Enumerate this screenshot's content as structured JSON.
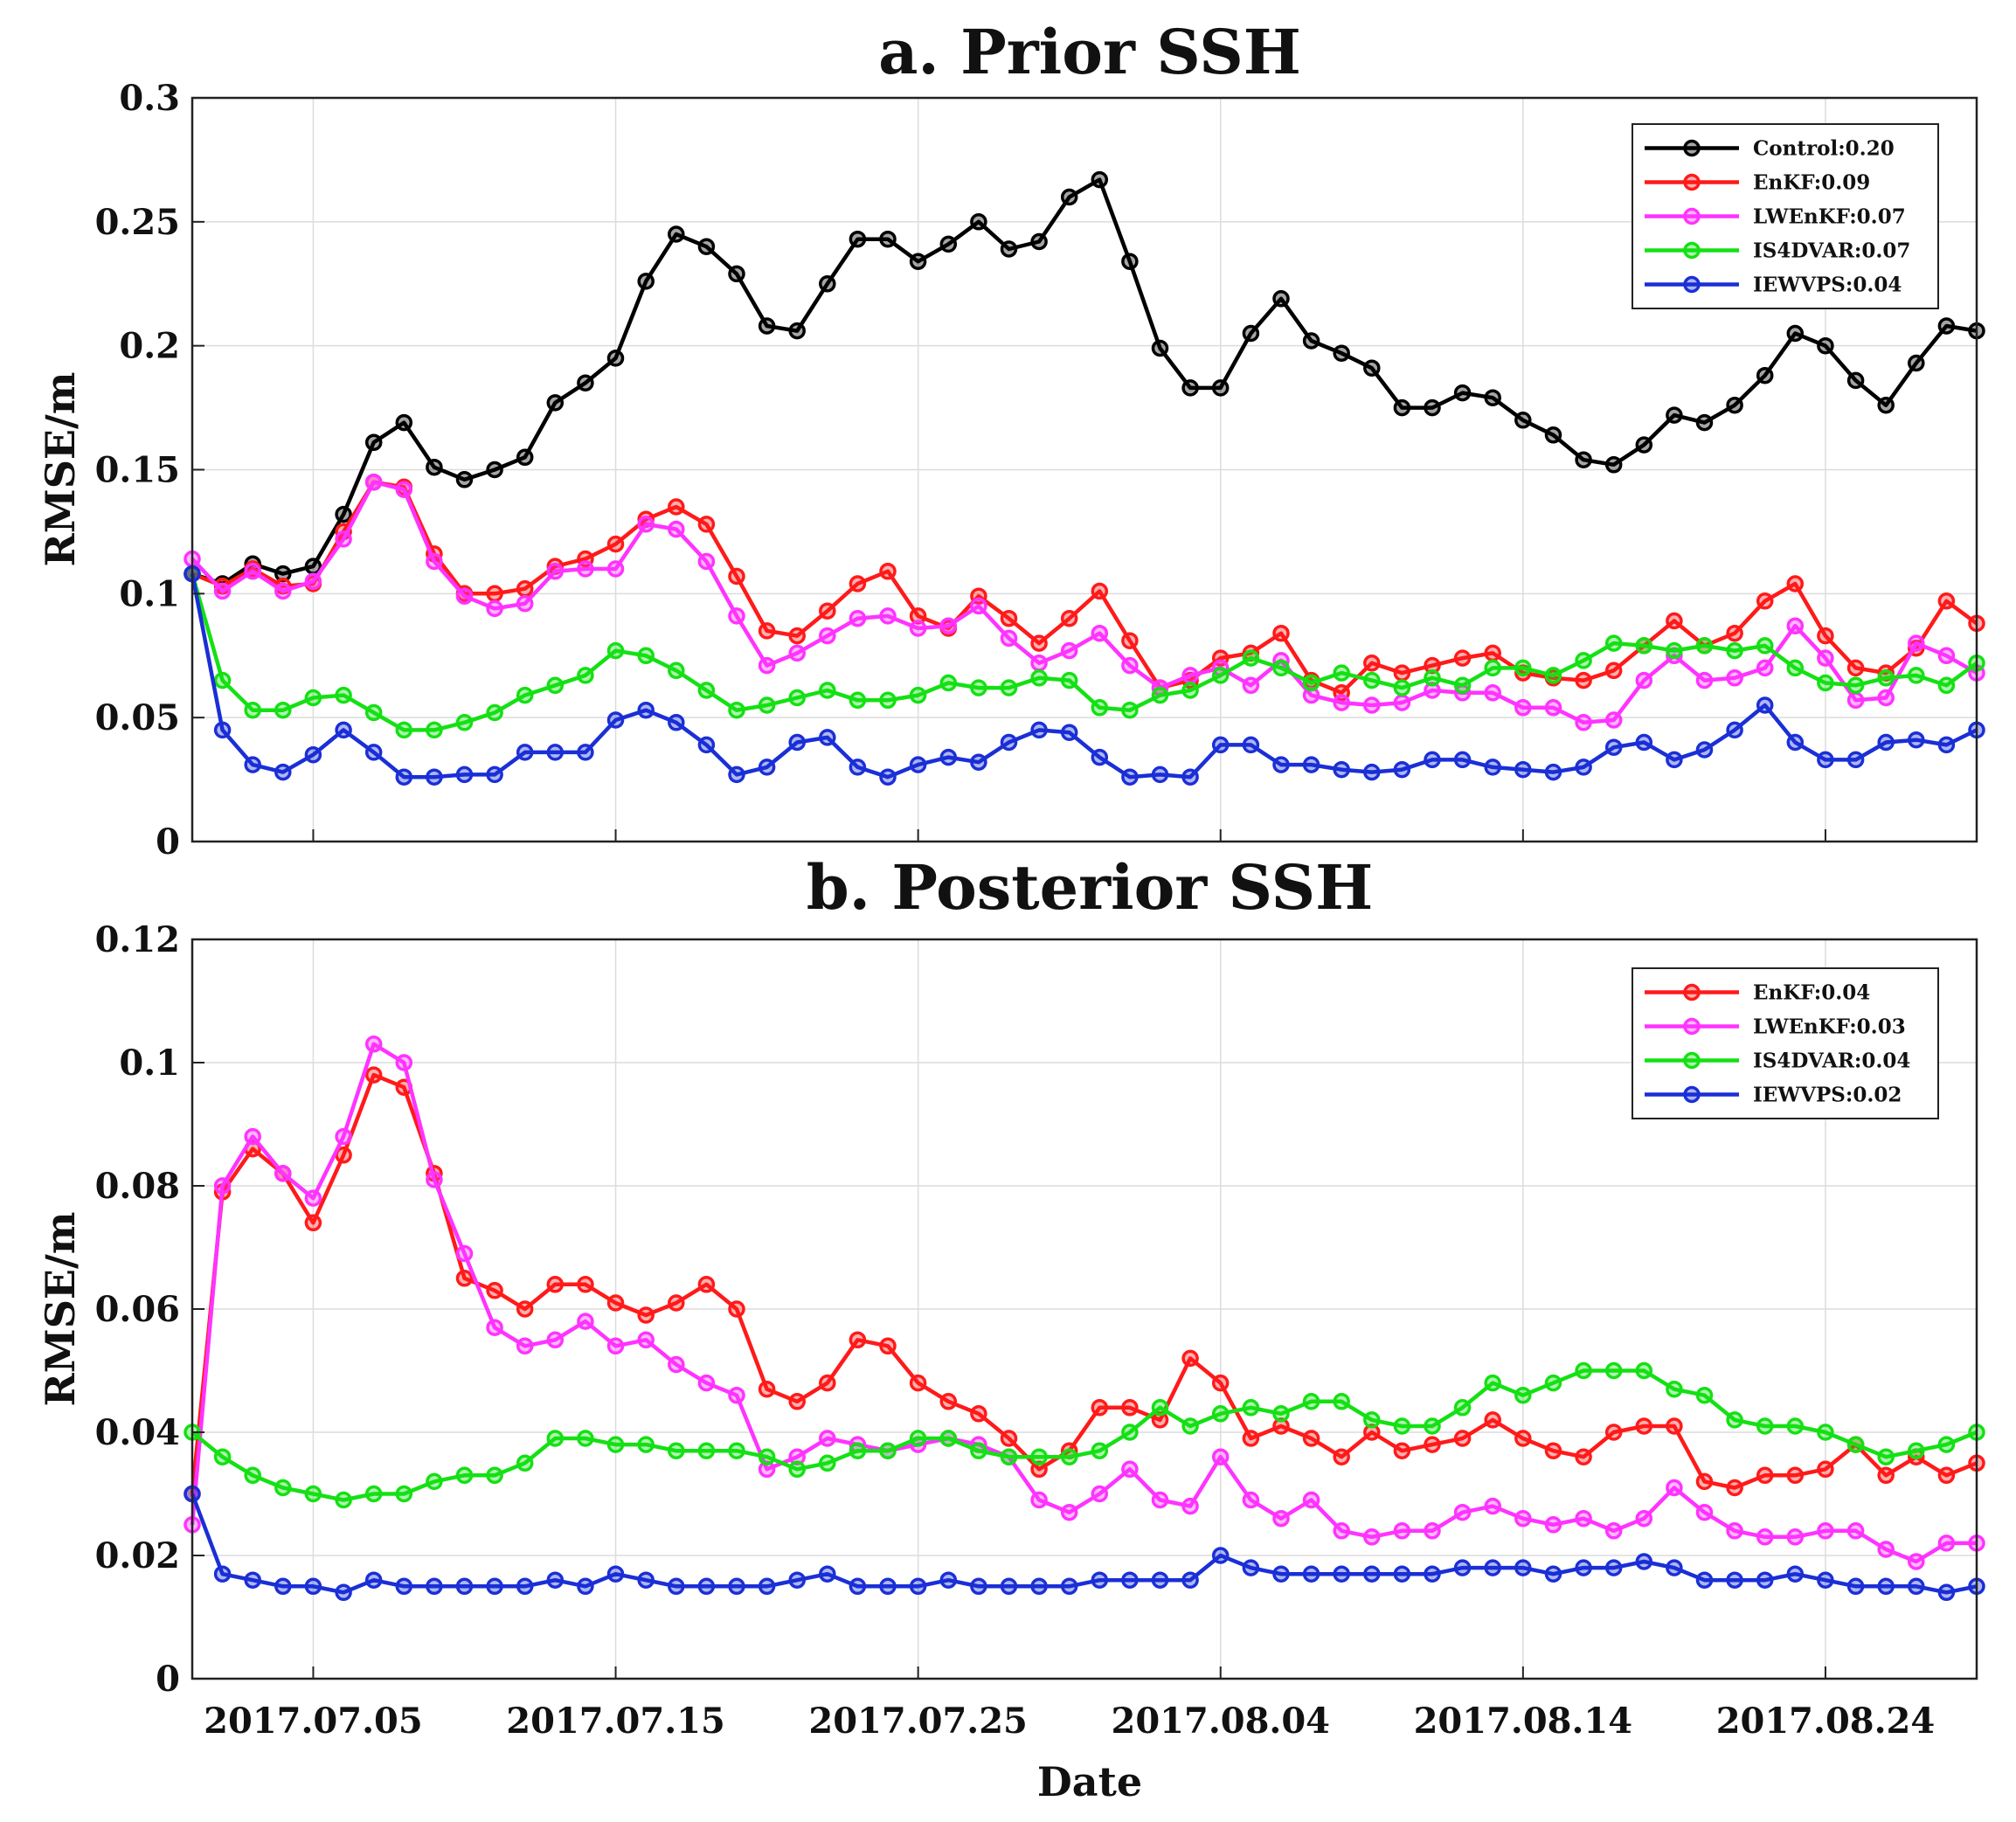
{
  "chart_data": [
    {
      "type": "line",
      "title": "a. Prior SSH",
      "xlabel": "",
      "ylabel": "RMSE/m",
      "ylim": [
        0,
        0.3
      ],
      "yticks": [
        "0",
        "0.05",
        "0.1",
        "0.15",
        "0.2",
        "0.25",
        "0.3"
      ],
      "xticks": [
        "2017.07.05",
        "2017.07.15",
        "2017.07.25",
        "2017.08.04",
        "2017.08.14",
        "2017.08.24"
      ],
      "x_start": "2017.07.01",
      "x_end": "2017.08.29",
      "grid": true,
      "legend_position": "top-right",
      "series": [
        {
          "name": "Control:0.20",
          "color": "#000000",
          "values": [
            0.108,
            0.104,
            0.112,
            0.108,
            0.111,
            0.132,
            0.161,
            0.169,
            0.151,
            0.146,
            0.15,
            0.155,
            0.177,
            0.185,
            0.195,
            0.226,
            0.245,
            0.24,
            0.229,
            0.208,
            0.206,
            0.225,
            0.243,
            0.243,
            0.234,
            0.241,
            0.25,
            0.239,
            0.242,
            0.26,
            0.267,
            0.234,
            0.199,
            0.183,
            0.183,
            0.205,
            0.219,
            0.202,
            0.197,
            0.191,
            0.175,
            0.175,
            0.181,
            0.179,
            0.17,
            0.164,
            0.154,
            0.152,
            0.16,
            0.172,
            0.169,
            0.176,
            0.188,
            0.205,
            0.2,
            0.186,
            0.176,
            0.193,
            0.208,
            0.206
          ]
        },
        {
          "name": "EnKF:0.09",
          "color": "#ff1a1a",
          "values": [
            0.108,
            0.103,
            0.11,
            0.103,
            0.104,
            0.125,
            0.145,
            0.143,
            0.116,
            0.1,
            0.1,
            0.102,
            0.111,
            0.114,
            0.12,
            0.13,
            0.135,
            0.128,
            0.107,
            0.085,
            0.083,
            0.093,
            0.104,
            0.109,
            0.091,
            0.086,
            0.099,
            0.09,
            0.08,
            0.09,
            0.101,
            0.081,
            0.062,
            0.065,
            0.074,
            0.076,
            0.084,
            0.065,
            0.06,
            0.072,
            0.068,
            0.071,
            0.074,
            0.076,
            0.068,
            0.066,
            0.065,
            0.069,
            0.079,
            0.089,
            0.079,
            0.084,
            0.097,
            0.104,
            0.083,
            0.07,
            0.068,
            0.078,
            0.097,
            0.088
          ]
        },
        {
          "name": "LWEnKF:0.07",
          "color": "#ff33ff",
          "values": [
            0.114,
            0.101,
            0.109,
            0.101,
            0.105,
            0.122,
            0.145,
            0.142,
            0.113,
            0.099,
            0.094,
            0.096,
            0.109,
            0.11,
            0.11,
            0.128,
            0.126,
            0.113,
            0.091,
            0.071,
            0.076,
            0.083,
            0.09,
            0.091,
            0.086,
            0.087,
            0.095,
            0.082,
            0.072,
            0.077,
            0.084,
            0.071,
            0.062,
            0.067,
            0.07,
            0.063,
            0.073,
            0.059,
            0.056,
            0.055,
            0.056,
            0.061,
            0.06,
            0.06,
            0.054,
            0.054,
            0.048,
            0.049,
            0.065,
            0.075,
            0.065,
            0.066,
            0.07,
            0.087,
            0.074,
            0.057,
            0.058,
            0.08,
            0.075,
            0.068
          ]
        },
        {
          "name": "IS4DVAR:0.07",
          "color": "#14e014",
          "values": [
            0.108,
            0.065,
            0.053,
            0.053,
            0.058,
            0.059,
            0.052,
            0.045,
            0.045,
            0.048,
            0.052,
            0.059,
            0.063,
            0.067,
            0.077,
            0.075,
            0.069,
            0.061,
            0.053,
            0.055,
            0.058,
            0.061,
            0.057,
            0.057,
            0.059,
            0.064,
            0.062,
            0.062,
            0.066,
            0.065,
            0.054,
            0.053,
            0.059,
            0.061,
            0.067,
            0.074,
            0.07,
            0.064,
            0.068,
            0.065,
            0.062,
            0.066,
            0.063,
            0.07,
            0.07,
            0.067,
            0.073,
            0.08,
            0.079,
            0.077,
            0.079,
            0.077,
            0.079,
            0.07,
            0.064,
            0.063,
            0.066,
            0.067,
            0.063,
            0.072
          ]
        },
        {
          "name": "IEWVPS:0.04",
          "color": "#1a2fd6",
          "values": [
            0.108,
            0.045,
            0.031,
            0.028,
            0.035,
            0.045,
            0.036,
            0.026,
            0.026,
            0.027,
            0.027,
            0.036,
            0.036,
            0.036,
            0.049,
            0.053,
            0.048,
            0.039,
            0.027,
            0.03,
            0.04,
            0.042,
            0.03,
            0.026,
            0.031,
            0.034,
            0.032,
            0.04,
            0.045,
            0.044,
            0.034,
            0.026,
            0.027,
            0.026,
            0.039,
            0.039,
            0.031,
            0.031,
            0.029,
            0.028,
            0.029,
            0.033,
            0.033,
            0.03,
            0.029,
            0.028,
            0.03,
            0.038,
            0.04,
            0.033,
            0.037,
            0.045,
            0.055,
            0.04,
            0.033,
            0.033,
            0.04,
            0.041,
            0.039,
            0.045
          ]
        }
      ]
    },
    {
      "type": "line",
      "title": "b. Posterior SSH",
      "xlabel": "Date",
      "ylabel": "RMSE/m",
      "ylim": [
        0,
        0.12
      ],
      "yticks": [
        "0",
        "0.02",
        "0.04",
        "0.06",
        "0.08",
        "0.1",
        "0.12"
      ],
      "xticks": [
        "2017.07.05",
        "2017.07.15",
        "2017.07.25",
        "2017.08.04",
        "2017.08.14",
        "2017.08.24"
      ],
      "x_start": "2017.07.01",
      "x_end": "2017.08.29",
      "grid": true,
      "legend_position": "top-right",
      "series": [
        {
          "name": "EnKF:0.04",
          "color": "#ff1a1a",
          "values": [
            0.03,
            0.079,
            0.086,
            0.082,
            0.074,
            0.085,
            0.098,
            0.096,
            0.082,
            0.065,
            0.063,
            0.06,
            0.064,
            0.064,
            0.061,
            0.059,
            0.061,
            0.064,
            0.06,
            0.047,
            0.045,
            0.048,
            0.055,
            0.054,
            0.048,
            0.045,
            0.043,
            0.039,
            0.034,
            0.037,
            0.044,
            0.044,
            0.042,
            0.052,
            0.048,
            0.039,
            0.041,
            0.039,
            0.036,
            0.04,
            0.037,
            0.038,
            0.039,
            0.042,
            0.039,
            0.037,
            0.036,
            0.04,
            0.041,
            0.041,
            0.032,
            0.031,
            0.033,
            0.033,
            0.034,
            0.038,
            0.033,
            0.036,
            0.033,
            0.035
          ]
        },
        {
          "name": "LWEnKF:0.03",
          "color": "#ff33ff",
          "values": [
            0.025,
            0.08,
            0.088,
            0.082,
            0.078,
            0.088,
            0.103,
            0.1,
            0.081,
            0.069,
            0.057,
            0.054,
            0.055,
            0.058,
            0.054,
            0.055,
            0.051,
            0.048,
            0.046,
            0.034,
            0.036,
            0.039,
            0.038,
            0.037,
            0.038,
            0.039,
            0.038,
            0.036,
            0.029,
            0.027,
            0.03,
            0.034,
            0.029,
            0.028,
            0.036,
            0.029,
            0.026,
            0.029,
            0.024,
            0.023,
            0.024,
            0.024,
            0.027,
            0.028,
            0.026,
            0.025,
            0.026,
            0.024,
            0.026,
            0.031,
            0.027,
            0.024,
            0.023,
            0.023,
            0.024,
            0.024,
            0.021,
            0.019,
            0.022,
            0.022
          ]
        },
        {
          "name": "IS4DVAR:0.04",
          "color": "#14e014",
          "values": [
            0.04,
            0.036,
            0.033,
            0.031,
            0.03,
            0.029,
            0.03,
            0.03,
            0.032,
            0.033,
            0.033,
            0.035,
            0.039,
            0.039,
            0.038,
            0.038,
            0.037,
            0.037,
            0.037,
            0.036,
            0.034,
            0.035,
            0.037,
            0.037,
            0.039,
            0.039,
            0.037,
            0.036,
            0.036,
            0.036,
            0.037,
            0.04,
            0.044,
            0.041,
            0.043,
            0.044,
            0.043,
            0.045,
            0.045,
            0.042,
            0.041,
            0.041,
            0.044,
            0.048,
            0.046,
            0.048,
            0.05,
            0.05,
            0.05,
            0.047,
            0.046,
            0.042,
            0.041,
            0.041,
            0.04,
            0.038,
            0.036,
            0.037,
            0.038,
            0.04
          ]
        },
        {
          "name": "IEWVPS:0.02",
          "color": "#1a2fd6",
          "values": [
            0.03,
            0.017,
            0.016,
            0.015,
            0.015,
            0.014,
            0.016,
            0.015,
            0.015,
            0.015,
            0.015,
            0.015,
            0.016,
            0.015,
            0.017,
            0.016,
            0.015,
            0.015,
            0.015,
            0.015,
            0.016,
            0.017,
            0.015,
            0.015,
            0.015,
            0.016,
            0.015,
            0.015,
            0.015,
            0.015,
            0.016,
            0.016,
            0.016,
            0.016,
            0.02,
            0.018,
            0.017,
            0.017,
            0.017,
            0.017,
            0.017,
            0.017,
            0.018,
            0.018,
            0.018,
            0.017,
            0.018,
            0.018,
            0.019,
            0.018,
            0.016,
            0.016,
            0.016,
            0.017,
            0.016,
            0.015,
            0.015,
            0.015,
            0.014,
            0.015
          ]
        }
      ]
    }
  ]
}
